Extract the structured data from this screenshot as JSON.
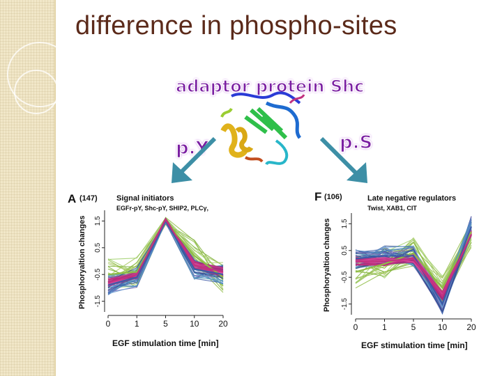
{
  "slide": {
    "title": "difference in phospho-sites",
    "protein_title": "adaptor protein Shc",
    "left_label": "p.Y",
    "right_label": "p.S"
  },
  "colors": {
    "title": "#5b2a1a",
    "purple": "#7b1fa2",
    "arrow": "#3d8fa6",
    "green": "#8fbc45",
    "blue": "#3d5aa6",
    "magenta": "#c2317f"
  },
  "icons": [
    "protein-structure-icon",
    "arrow-down-left-icon",
    "arrow-down-right-icon"
  ],
  "chart_data": [
    {
      "type": "line",
      "panel": "A",
      "count": "(147)",
      "title": "Signal initiators",
      "subtitle": "EGFr-pY, Shc-pY, SHIP2, PLCγ,",
      "xlabel": "EGF stimulation time [min]",
      "ylabel": "Phosphoryaltion changes",
      "x": [
        0,
        1,
        5,
        10,
        20
      ],
      "x_tick_labels": [
        "0",
        "1",
        "5",
        "10",
        "20"
      ],
      "y_tick_labels": [
        "1.5",
        "0.5",
        "-0.5",
        "-1.5"
      ],
      "y_ticks": [
        1.5,
        0.5,
        -0.5,
        -1.5
      ],
      "ylim": [
        -1.9,
        1.9
      ],
      "series": [
        {
          "name": "green",
          "values": [
            -0.5,
            -0.4,
            1.5,
            0.2,
            -0.6
          ]
        },
        {
          "name": "blue",
          "values": [
            -0.9,
            -0.6,
            1.5,
            -0.3,
            -0.5
          ]
        },
        {
          "name": "magenta",
          "values": [
            -0.8,
            -0.5,
            1.55,
            -0.15,
            -0.4
          ]
        }
      ]
    },
    {
      "type": "line",
      "panel": "F",
      "count": "(106)",
      "title": "Late negative regulators",
      "subtitle": "Twist, XAB1, CIT",
      "xlabel": "EGF stimulation time [min]",
      "ylabel": "Phosphoryaltion changes",
      "x": [
        0,
        1,
        5,
        10,
        20
      ],
      "x_tick_labels": [
        "0",
        "1",
        "5",
        "10",
        "20"
      ],
      "y_tick_labels": [
        "1.5",
        "0.5",
        "-0.5",
        "-1.5"
      ],
      "y_ticks": [
        1.5,
        0.5,
        -0.5,
        -1.5
      ],
      "ylim": [
        -1.9,
        1.9
      ],
      "series": [
        {
          "name": "green",
          "values": [
            -0.3,
            0.0,
            0.4,
            -0.9,
            1.2
          ]
        },
        {
          "name": "blue",
          "values": [
            0.2,
            0.3,
            0.3,
            -1.5,
            1.4
          ]
        },
        {
          "name": "magenta",
          "values": [
            0.1,
            0.1,
            0.2,
            -1.2,
            1.1
          ]
        }
      ]
    }
  ]
}
